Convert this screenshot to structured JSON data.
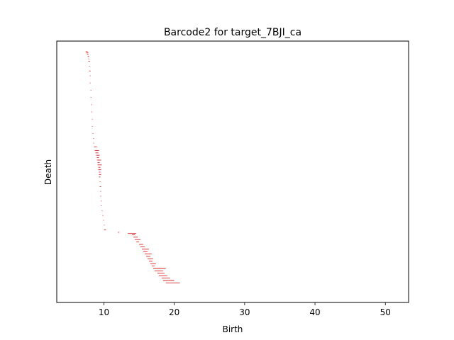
{
  "chart_data": {
    "type": "barcode",
    "title": "Barcode2 for target_7BJI_ca",
    "xlabel": "Birth",
    "ylabel": "Death",
    "xlim": [
      3.3,
      53.3
    ],
    "x_ticks": [
      10,
      20,
      30,
      40,
      50
    ],
    "y_ticks": [],
    "bar_color": "#d62728",
    "grid": false,
    "legend": "none",
    "segments": [
      {
        "band": 0.0,
        "x": [
          7.4,
          7.7
        ]
      },
      {
        "band": 0.5,
        "x": [
          7.5,
          7.8
        ]
      },
      {
        "band": 1.0,
        "x": [
          7.6,
          7.8
        ]
      },
      {
        "band": 2.0,
        "x": [
          7.7,
          7.9
        ]
      },
      {
        "band": 3.0,
        "x": [
          7.8,
          7.9
        ]
      },
      {
        "band": 4.0,
        "x": [
          7.8,
          8.0
        ]
      },
      {
        "band": 6.0,
        "x": [
          7.9,
          8.0
        ]
      },
      {
        "band": 8.0,
        "x": [
          7.9,
          8.1
        ]
      },
      {
        "band": 10.0,
        "x": [
          8.0,
          8.1
        ]
      },
      {
        "band": 13.0,
        "x": [
          8.0,
          8.1
        ]
      },
      {
        "band": 16.0,
        "x": [
          8.1,
          8.2
        ]
      },
      {
        "band": 19.0,
        "x": [
          8.1,
          8.2
        ]
      },
      {
        "band": 22.0,
        "x": [
          8.2,
          8.3
        ]
      },
      {
        "band": 25.0,
        "x": [
          8.2,
          8.3
        ]
      },
      {
        "band": 28.0,
        "x": [
          8.3,
          8.4
        ]
      },
      {
        "band": 31.0,
        "x": [
          8.3,
          8.4
        ]
      },
      {
        "band": 34.0,
        "x": [
          8.4,
          8.5
        ]
      },
      {
        "band": 36.0,
        "x": [
          8.5,
          8.6
        ]
      },
      {
        "band": 38.0,
        "x": [
          8.5,
          8.6
        ]
      },
      {
        "band": 39.5,
        "x": [
          8.6,
          9.0
        ]
      },
      {
        "band": 41.0,
        "x": [
          8.7,
          9.3
        ]
      },
      {
        "band": 42.0,
        "x": [
          8.8,
          9.2
        ]
      },
      {
        "band": 43.0,
        "x": [
          8.9,
          9.4
        ]
      },
      {
        "band": 44.0,
        "x": [
          9.0,
          9.3
        ]
      },
      {
        "band": 45.0,
        "x": [
          9.0,
          9.6
        ]
      },
      {
        "band": 46.0,
        "x": [
          9.1,
          9.4
        ]
      },
      {
        "band": 47.0,
        "x": [
          9.1,
          9.7
        ]
      },
      {
        "band": 48.0,
        "x": [
          9.2,
          9.5
        ]
      },
      {
        "band": 49.0,
        "x": [
          9.2,
          9.6
        ]
      },
      {
        "band": 50.0,
        "x": [
          9.3,
          9.5
        ]
      },
      {
        "band": 51.0,
        "x": [
          9.3,
          9.6
        ]
      },
      {
        "band": 52.0,
        "x": [
          9.3,
          9.5
        ]
      },
      {
        "band": 54.0,
        "x": [
          9.4,
          9.5
        ]
      },
      {
        "band": 56.0,
        "x": [
          9.4,
          9.6
        ]
      },
      {
        "band": 58.0,
        "x": [
          9.5,
          9.6
        ]
      },
      {
        "band": 60.0,
        "x": [
          9.5,
          9.6
        ]
      },
      {
        "band": 62.0,
        "x": [
          9.6,
          9.7
        ]
      },
      {
        "band": 64.0,
        "x": [
          9.6,
          9.7
        ]
      },
      {
        "band": 66.0,
        "x": [
          9.7,
          9.8
        ]
      },
      {
        "band": 68.0,
        "x": [
          9.8,
          9.9
        ]
      },
      {
        "band": 70.0,
        "x": [
          9.9,
          10.0
        ]
      },
      {
        "band": 72.0,
        "x": [
          10.0,
          10.1
        ]
      },
      {
        "band": 74.0,
        "x": [
          10.0,
          10.3
        ]
      },
      {
        "band": 75.0,
        "x": [
          12.0,
          12.2
        ]
      },
      {
        "band": 75.5,
        "x": [
          13.4,
          14.6
        ]
      },
      {
        "band": 76.0,
        "x": [
          14.0,
          14.4
        ]
      },
      {
        "band": 77.0,
        "x": [
          14.2,
          14.8
        ]
      },
      {
        "band": 78.0,
        "x": [
          14.4,
          15.2
        ]
      },
      {
        "band": 79.0,
        "x": [
          14.6,
          15.0
        ]
      },
      {
        "band": 80.0,
        "x": [
          15.0,
          15.6
        ]
      },
      {
        "band": 81.0,
        "x": [
          15.2,
          15.8
        ]
      },
      {
        "band": 82.0,
        "x": [
          15.4,
          16.4
        ]
      },
      {
        "band": 83.0,
        "x": [
          15.6,
          16.2
        ]
      },
      {
        "band": 84.0,
        "x": [
          15.8,
          16.8
        ]
      },
      {
        "band": 85.0,
        "x": [
          16.0,
          16.6
        ]
      },
      {
        "band": 86.0,
        "x": [
          16.2,
          17.0
        ]
      },
      {
        "band": 87.0,
        "x": [
          16.4,
          16.9
        ]
      },
      {
        "band": 88.0,
        "x": [
          16.6,
          17.4
        ]
      },
      {
        "band": 89.0,
        "x": [
          16.8,
          17.2
        ]
      },
      {
        "band": 90.0,
        "x": [
          17.0,
          18.8
        ]
      },
      {
        "band": 91.0,
        "x": [
          17.2,
          18.4
        ]
      },
      {
        "band": 92.0,
        "x": [
          17.6,
          18.6
        ]
      },
      {
        "band": 93.0,
        "x": [
          17.8,
          19.0
        ]
      },
      {
        "band": 94.0,
        "x": [
          18.2,
          19.4
        ]
      },
      {
        "band": 95.0,
        "x": [
          18.4,
          20.0
        ]
      },
      {
        "band": 96.0,
        "x": [
          18.8,
          20.8
        ]
      }
    ]
  }
}
